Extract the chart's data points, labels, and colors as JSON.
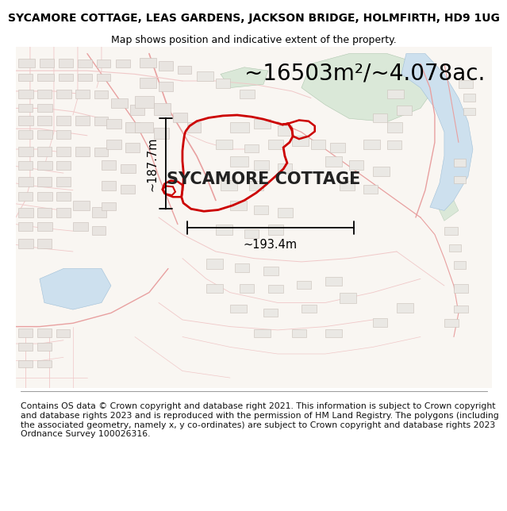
{
  "title_line1": "SYCAMORE COTTAGE, LEAS GARDENS, JACKSON BRIDGE, HOLMFIRTH, HD9 1UG",
  "title_line2": "Map shows position and indicative extent of the property.",
  "area_text": "~16503m²/~4.078ac.",
  "label_name": "SYCAMORE COTTAGE",
  "dim_width": "~193.4m",
  "dim_height": "~187.7m",
  "footer_text": "Contains OS data © Crown copyright and database right 2021. This information is subject to Crown copyright and database rights 2023 and is reproduced with the permission of HM Land Registry. The polygons (including the associated geometry, namely x, y co-ordinates) are subject to Crown copyright and database rights 2023 Ordnance Survey 100026316.",
  "bg_color": "#ffffff",
  "map_bg": "#f9f6f2",
  "red_outline": "#cc0000",
  "green_fill": "#dae8d8",
  "blue_fill": "#cde0ee",
  "road_color": "#f0c8c8",
  "road_edge": "#e8a0a0",
  "building_fill": "#e8e4e0",
  "building_edge": "#c8bfb8",
  "title_fontsize": 10,
  "subtitle_fontsize": 9,
  "area_fontsize": 20,
  "label_fontsize": 15,
  "dim_fontsize": 10.5,
  "footer_fontsize": 7.8
}
